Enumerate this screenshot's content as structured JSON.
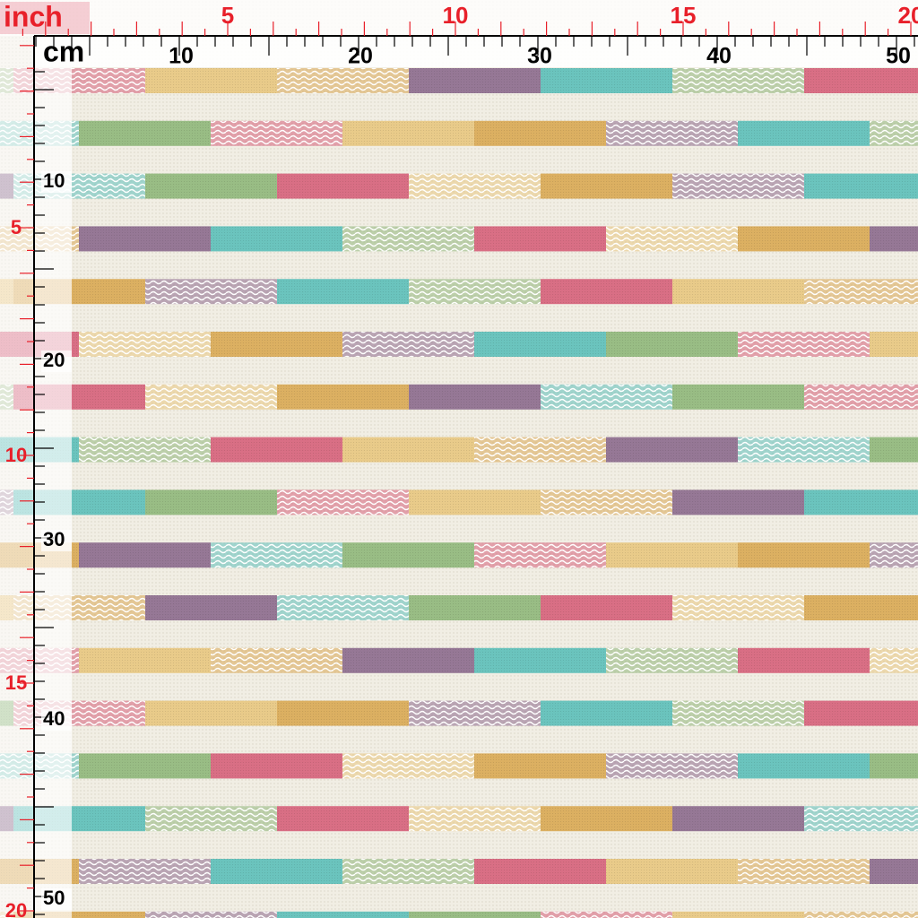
{
  "rulers": {
    "top": {
      "inch_unit": "inch",
      "cm_unit": "cm",
      "inch_labels": [
        "5",
        "10",
        "15",
        "20"
      ],
      "cm_labels": [
        "10",
        "20",
        "30",
        "40",
        "50"
      ]
    },
    "left": {
      "cm_labels": [
        "10",
        "20",
        "30",
        "40",
        "50"
      ],
      "inch_labels": [
        "5",
        "10",
        "15",
        "20"
      ]
    }
  }
}
